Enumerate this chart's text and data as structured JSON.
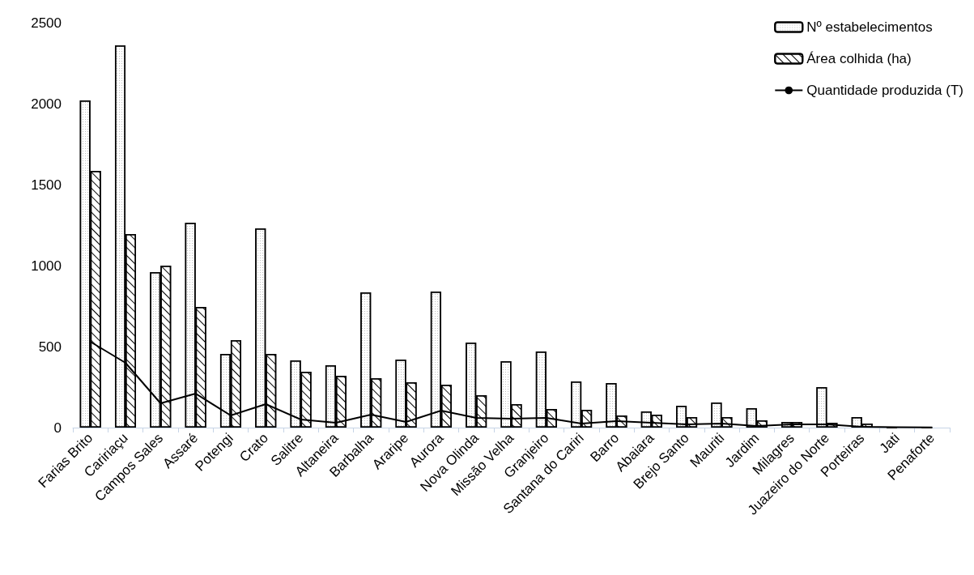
{
  "chart_data": {
    "type": "bar",
    "categories": [
      "Farias Brito",
      "Caririaçu",
      "Campos Sales",
      "Assaré",
      "Potengi",
      "Crato",
      "Salitre",
      "Altaneira",
      "Barbalha",
      "Araripe",
      "Aurora",
      "Nova Olinda",
      "Missão Velha",
      "Granjeiro",
      "Santana do Cariri",
      "Barro",
      "Abaiara",
      "Brejo Santo",
      "Mauriti",
      "Jardim",
      "Milagres",
      "Juazeiro do Norte",
      "Porteiras",
      "Jati",
      "Penaforte"
    ],
    "series": [
      {
        "name": "Nº estabelecimentos",
        "color": "#000000",
        "values": [
          2020,
          2360,
          960,
          1265,
          455,
          1230,
          415,
          385,
          835,
          420,
          840,
          525,
          410,
          470,
          285,
          275,
          100,
          135,
          155,
          120,
          35,
          250,
          65,
          0,
          0
        ]
      },
      {
        "name": "Área colhida (ha)",
        "color": "#000000",
        "values": [
          1585,
          1195,
          1000,
          745,
          540,
          455,
          345,
          320,
          305,
          280,
          265,
          200,
          145,
          115,
          110,
          75,
          80,
          65,
          65,
          45,
          35,
          30,
          25,
          null,
          null
        ]
      },
      {
        "name": "Quantidade produzida (T)",
        "type": "line",
        "color": "#000000",
        "values": [
          530,
          400,
          150,
          210,
          75,
          145,
          50,
          30,
          80,
          35,
          105,
          60,
          55,
          60,
          25,
          40,
          30,
          20,
          25,
          10,
          20,
          20,
          5,
          2,
          1
        ]
      }
    ],
    "ylim": [
      0,
      2500
    ],
    "yticks": [
      0,
      500,
      1000,
      1500,
      2000,
      2500
    ],
    "grid": false,
    "legend": "top right",
    "marker": "none",
    "line_style": "solid"
  }
}
